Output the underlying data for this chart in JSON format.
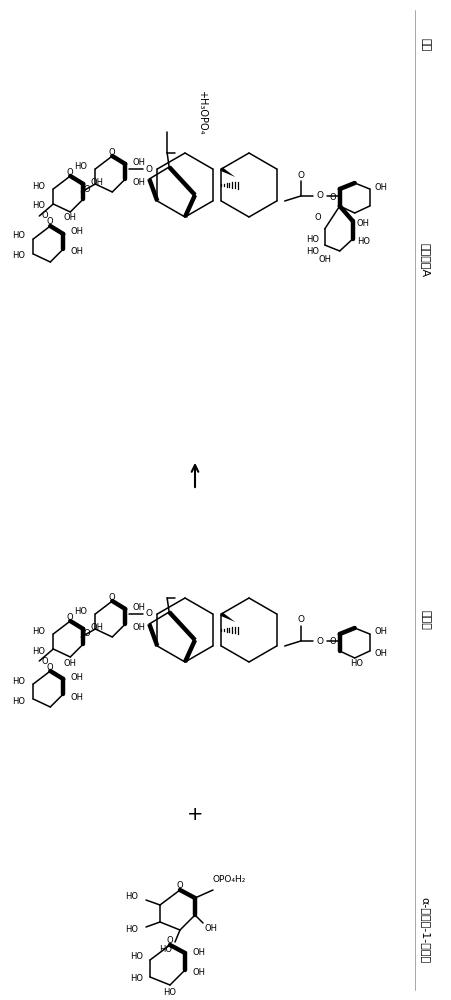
{
  "bg_color": "#ffffff",
  "label_phosphoric": "磷酸",
  "label_rebA": "莱鲍迪苷A",
  "label_stevioside": "甜菊苷",
  "label_glucose1p": "α-葡萄糖-1-磷酸酯",
  "figsize": [
    4.52,
    10.0
  ],
  "dpi": 100
}
